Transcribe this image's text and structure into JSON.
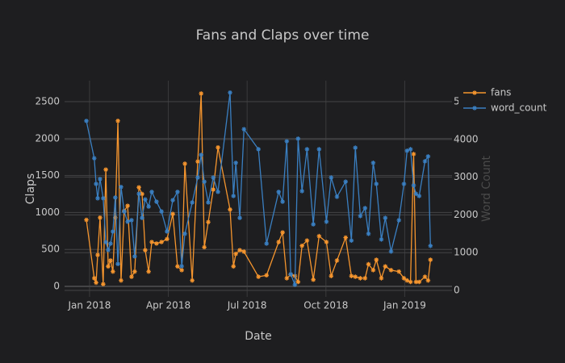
{
  "chart_data": {
    "type": "line",
    "title": "Fans and Claps over time",
    "x_label": "Date",
    "y_label": "Claps",
    "y2_label": "Word Count",
    "x": [
      -0.12,
      0.18,
      0.25,
      0.31,
      0.4,
      0.52,
      0.62,
      0.71,
      0.8,
      0.89,
      0.98,
      1.08,
      1.2,
      1.32,
      1.45,
      1.6,
      1.72,
      1.88,
      2.0,
      2.12,
      2.25,
      2.37,
      2.55,
      2.74,
      2.95,
      3.17,
      3.35,
      3.51,
      3.63,
      3.91,
      4.12,
      4.25,
      4.37,
      4.52,
      4.71,
      4.89,
      5.35,
      5.48,
      5.57,
      5.72,
      5.88,
      6.43,
      6.74,
      7.2,
      7.35,
      7.51,
      7.66,
      7.82,
      7.94,
      8.09,
      8.28,
      8.52,
      8.74,
      9.02,
      9.2,
      9.42,
      9.75,
      9.97,
      10.12,
      10.31,
      10.49,
      10.62,
      10.8,
      10.92,
      11.11,
      11.26,
      11.48,
      11.78,
      11.97,
      12.09,
      12.22,
      12.34,
      12.43,
      12.55,
      12.77,
      12.89,
      12.98
    ],
    "xlim": [
      -0.95,
      13.8
    ],
    "xticks": [
      {
        "value": 0,
        "label": "Jan 2018"
      },
      {
        "value": 3,
        "label": "Apr 2018"
      },
      {
        "value": 6,
        "label": "Jul 2018"
      },
      {
        "value": 9,
        "label": "Oct 2018"
      },
      {
        "value": 12,
        "label": "Jan 2019"
      }
    ],
    "ylim": [
      -142,
      2784
    ],
    "yticks": [
      0,
      500,
      1000,
      1500,
      2000,
      2500
    ],
    "y2lim": [
      -171,
      5556
    ],
    "y2ticks": [
      0,
      1000,
      2000,
      3000,
      4000,
      5000
    ],
    "grid": true,
    "legend": "top-right",
    "series": [
      {
        "name": "fans",
        "color": "#f5952e",
        "values": [
          900,
          110,
          50,
          425,
          930,
          30,
          1580,
          270,
          350,
          200,
          930,
          2240,
          80,
          1020,
          1090,
          130,
          200,
          1340,
          1250,
          490,
          200,
          600,
          580,
          600,
          640,
          980,
          270,
          220,
          1660,
          80,
          1690,
          2610,
          530,
          870,
          1310,
          1880,
          1040,
          270,
          440,
          490,
          470,
          130,
          150,
          600,
          730,
          110,
          160,
          140,
          60,
          550,
          620,
          90,
          680,
          600,
          140,
          350,
          660,
          140,
          130,
          110,
          110,
          300,
          220,
          360,
          110,
          270,
          220,
          200,
          110,
          80,
          60,
          1790,
          60,
          60,
          130,
          80,
          360
        ]
      },
      {
        "name": "word_count",
        "color": "#3a7fc1",
        "axis": "y2",
        "values": [
          4490,
          3500,
          2820,
          2440,
          2950,
          2440,
          1280,
          1070,
          1240,
          1560,
          2460,
          700,
          2740,
          2090,
          1820,
          1860,
          900,
          2560,
          1920,
          2410,
          2220,
          2610,
          2350,
          2090,
          1560,
          2390,
          2610,
          640,
          1500,
          2330,
          2990,
          3590,
          2880,
          2330,
          2990,
          2610,
          5240,
          2500,
          3380,
          1920,
          4270,
          3740,
          1240,
          2610,
          2350,
          3950,
          430,
          150,
          4020,
          2630,
          3740,
          1750,
          3740,
          1820,
          2990,
          2480,
          2880,
          1320,
          3780,
          1970,
          2180,
          1500,
          3380,
          2820,
          1350,
          1920,
          1030,
          1860,
          2820,
          3700,
          3740,
          2780,
          2560,
          2500,
          3420,
          3550,
          1180
        ]
      }
    ]
  }
}
